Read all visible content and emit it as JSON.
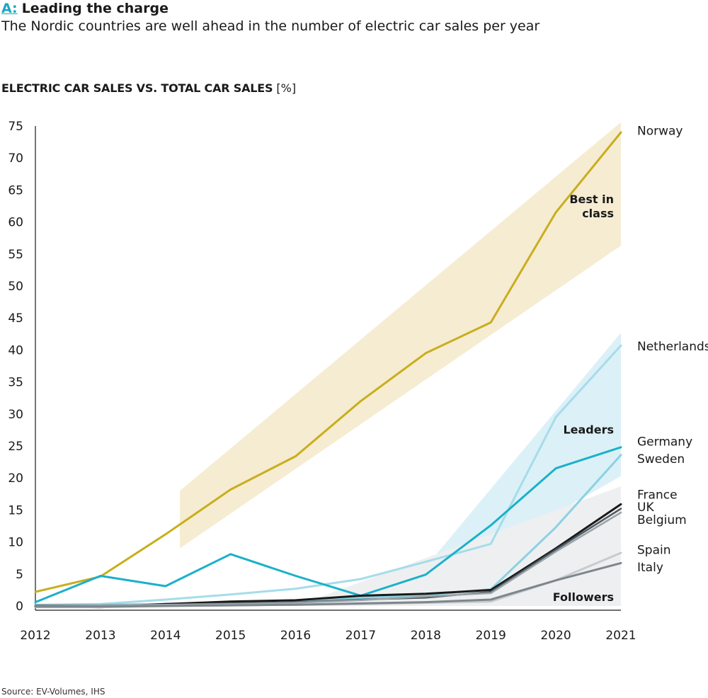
{
  "header": {
    "tag": "A:",
    "title": "Leading the charge"
  },
  "subtitle": "The Nordic countries are well ahead in the number of electric car sales per year",
  "chart_title": {
    "main": "ELECTRIC CAR SALES VS. TOTAL CAR SALES",
    "unit": "[%]"
  },
  "source": "Source: EV-Volumes, IHS",
  "chart_data": {
    "type": "line",
    "title": "ELECTRIC CAR SALES VS. TOTAL CAR SALES",
    "ylabel": "[%]",
    "xlabel": "",
    "x": [
      2012,
      2013,
      2014,
      2015,
      2016,
      2017,
      2018,
      2019,
      2020,
      2021
    ],
    "x_tick_labels": [
      "2012",
      "2013",
      "2014",
      "2015",
      "2016",
      "2017",
      "2018",
      "2019",
      "2020",
      "2021"
    ],
    "ylim": [
      0,
      75
    ],
    "y_ticks": [
      0,
      5,
      10,
      15,
      20,
      25,
      30,
      35,
      40,
      45,
      50,
      55,
      60,
      65,
      70,
      75
    ],
    "y_tick_labels": [
      "0",
      "5",
      "10",
      "15",
      "20",
      "25",
      "30",
      "35",
      "40",
      "45",
      "50",
      "55",
      "60",
      "65",
      "70",
      "75"
    ],
    "grid": false,
    "series": [
      {
        "name": "Norway",
        "color": "#c9ae1c",
        "width": 3,
        "values": [
          2.2,
          4.6,
          11.2,
          18.2,
          23.4,
          32.0,
          39.5,
          44.3,
          61.5,
          74.0
        ]
      },
      {
        "name": "Netherlands",
        "color": "#a6dcea",
        "width": 3,
        "values": [
          0.2,
          0.3,
          1.0,
          1.8,
          2.7,
          4.2,
          6.9,
          9.7,
          29.5,
          40.7
        ]
      },
      {
        "name": "Germany",
        "color": "#1ab1c9",
        "width": 3,
        "values": [
          0.6,
          4.7,
          3.1,
          8.1,
          4.7,
          1.6,
          4.9,
          12.6,
          21.5,
          24.8
        ]
      },
      {
        "name": "Sweden",
        "color": "#8ad2e2",
        "width": 3,
        "values": [
          0.0,
          0.2,
          0.3,
          0.5,
          0.7,
          1.3,
          1.7,
          2.6,
          12.3,
          23.6
        ]
      },
      {
        "name": "France",
        "color": "#1a1a1a",
        "width": 3,
        "values": [
          0.0,
          -0.2,
          0.3,
          0.7,
          0.9,
          1.6,
          1.9,
          2.5,
          9.0,
          15.9
        ]
      },
      {
        "name": "UK",
        "color": "#4d5860",
        "width": 2.5,
        "values": [
          0.1,
          0.1,
          0.2,
          0.4,
          0.6,
          1.0,
          1.3,
          2.2,
          8.8,
          15.2
        ]
      },
      {
        "name": "Belgium",
        "color": "#9aa3a8",
        "width": 2.5,
        "values": [
          0.0,
          0.1,
          0.2,
          0.3,
          0.5,
          0.9,
          1.5,
          2.0,
          8.5,
          14.6
        ]
      },
      {
        "name": "Spain",
        "color": "#c7cbce",
        "width": 3,
        "values": [
          -0.2,
          -0.2,
          0.0,
          0.1,
          0.2,
          0.3,
          0.5,
          0.7,
          4.0,
          8.3
        ]
      },
      {
        "name": "Italy",
        "color": "#7d868c",
        "width": 3,
        "values": [
          -0.1,
          -0.1,
          0.0,
          0.1,
          0.2,
          0.4,
          0.6,
          1.0,
          4.0,
          6.7
        ]
      }
    ],
    "bands": [
      {
        "name": "Best in class",
        "color": "#f5ecd2",
        "lower": [
          [
            2014.22,
            9.0
          ],
          [
            2021,
            56.3
          ]
        ],
        "upper": [
          [
            2021,
            75.6
          ],
          [
            2014.22,
            18.0
          ]
        ]
      },
      {
        "name": "Leaders",
        "color": "#dcf0f7",
        "lower": [
          [
            2017.5,
            0.0
          ],
          [
            2021,
            20.3
          ]
        ],
        "upper": [
          [
            2021,
            42.7
          ],
          [
            2017.5,
            0.0
          ]
        ]
      },
      {
        "name": "Followers",
        "color": "#eeeff1",
        "lower": [
          [
            2016.0,
            0.0
          ],
          [
            2021,
            0.0
          ]
        ],
        "upper": [
          [
            2021,
            18.7
          ],
          [
            2016.0,
            0.0
          ]
        ]
      }
    ],
    "band_labels": [
      {
        "lines": [
          "Best in",
          "class"
        ],
        "x": 2021,
        "y": 61.3
      },
      {
        "lines": [
          "Leaders"
        ],
        "x": 2021,
        "y": 27.5
      },
      {
        "lines": [
          "Followers"
        ],
        "x": 2021,
        "y": 1.3
      }
    ],
    "end_labels": [
      {
        "text": "Norway",
        "y": 74.3
      },
      {
        "text": "Netherlands",
        "y": 40.6
      },
      {
        "text": "Germany",
        "y": 25.7
      },
      {
        "text": "Sweden",
        "y": 23.0
      },
      {
        "text": "France",
        "y": 17.4
      },
      {
        "text": "UK",
        "y": 15.5
      },
      {
        "text": "Belgium",
        "y": 13.5
      },
      {
        "text": "Spain",
        "y": 8.8
      },
      {
        "text": "Italy",
        "y": 6.1
      }
    ]
  }
}
